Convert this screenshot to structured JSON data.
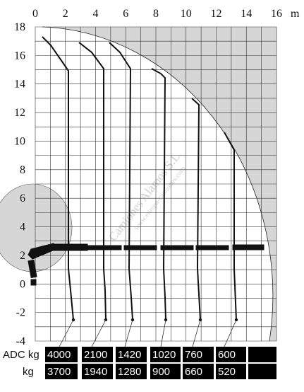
{
  "diagram": {
    "x_axis": {
      "unit": "m",
      "ticks": [
        {
          "value": 0,
          "label": "0"
        },
        {
          "value": 2,
          "label": "2"
        },
        {
          "value": 4,
          "label": "4"
        },
        {
          "value": 6,
          "label": "6"
        },
        {
          "value": 8,
          "label": "8"
        },
        {
          "value": 10,
          "label": "10"
        },
        {
          "value": 12,
          "label": "12"
        },
        {
          "value": 14,
          "label": "14"
        },
        {
          "value": 16,
          "label": "16"
        }
      ]
    },
    "y_axis": {
      "ticks": [
        {
          "value": 18,
          "label": "18"
        },
        {
          "value": 16,
          "label": "16"
        },
        {
          "value": 14,
          "label": "14"
        },
        {
          "value": 12,
          "label": "12"
        },
        {
          "value": 10,
          "label": "10"
        },
        {
          "value": 8,
          "label": "8"
        },
        {
          "value": 6,
          "label": "6"
        },
        {
          "value": 4,
          "label": "4"
        },
        {
          "value": 2,
          "label": "2"
        },
        {
          "value": 0,
          "label": "0"
        },
        {
          "value": -2,
          "label": "-2"
        },
        {
          "value": -4,
          "label": "-4"
        }
      ]
    },
    "watermark": {
      "line1": "Camiones Alamos S.L.",
      "line2": "www.europa-camiones.com"
    },
    "table": {
      "row1_label": "ADC kg",
      "row2_label": "kg",
      "row1_values": [
        "4000",
        "2100",
        "1420",
        "1020",
        "760",
        "600",
        ""
      ],
      "row2_values": [
        "3700",
        "1940",
        "1280",
        "900",
        "660",
        "520",
        ""
      ]
    }
  }
}
